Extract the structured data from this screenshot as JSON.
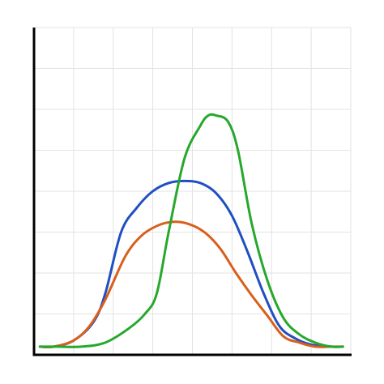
{
  "chart_data": {
    "type": "line",
    "title": "",
    "xlabel": "",
    "ylabel": "",
    "grid": true,
    "xlim": [
      0,
      8
    ],
    "ylim": [
      0,
      8
    ],
    "x_grid_count": 8,
    "y_grid_count": 8,
    "series": [
      {
        "color": "#1f4fc2",
        "x": [
          0.15,
          0.5,
          1.0,
          1.5,
          1.8,
          2.2,
          2.6,
          3.0,
          3.4,
          3.8,
          4.2,
          4.6,
          5.0,
          5.4,
          5.8,
          6.2,
          6.6,
          7.0,
          7.5,
          7.8
        ],
        "y": [
          0.2,
          0.2,
          0.35,
          0.8,
          1.5,
          3.0,
          3.6,
          4.0,
          4.2,
          4.25,
          4.2,
          3.95,
          3.4,
          2.5,
          1.5,
          0.7,
          0.4,
          0.25,
          0.2,
          0.2
        ]
      },
      {
        "color": "#d85f1c",
        "x": [
          0.15,
          0.5,
          1.0,
          1.4,
          1.8,
          2.3,
          2.7,
          3.1,
          3.5,
          3.9,
          4.3,
          4.7,
          5.1,
          5.5,
          5.9,
          6.3,
          6.7,
          7.1,
          7.5,
          7.8
        ],
        "y": [
          0.2,
          0.2,
          0.35,
          0.7,
          1.35,
          2.4,
          2.9,
          3.15,
          3.25,
          3.2,
          3.0,
          2.6,
          2.0,
          1.45,
          0.95,
          0.45,
          0.3,
          0.2,
          0.2,
          0.2
        ]
      },
      {
        "color": "#26a82c",
        "x": [
          0.15,
          0.6,
          1.2,
          1.8,
          2.4,
          2.8,
          3.1,
          3.4,
          3.8,
          4.2,
          4.4,
          4.6,
          4.9,
          5.15,
          5.5,
          5.9,
          6.3,
          6.7,
          7.1,
          7.5,
          7.8
        ],
        "y": [
          0.2,
          0.2,
          0.2,
          0.3,
          0.65,
          1.0,
          1.5,
          3.0,
          4.8,
          5.6,
          5.85,
          5.85,
          5.7,
          5.0,
          3.2,
          1.8,
          0.9,
          0.5,
          0.3,
          0.2,
          0.2
        ]
      }
    ]
  }
}
